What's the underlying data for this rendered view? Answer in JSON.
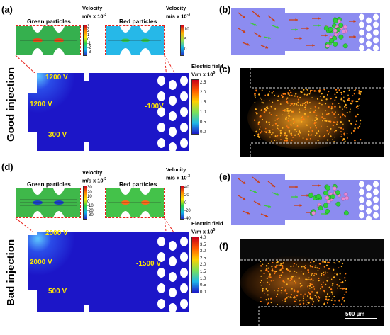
{
  "good": {
    "panel_a": "(a)",
    "panel_b": "(b)",
    "panel_c": "(c)",
    "side_label": "Good injection",
    "green_title": "Green particles",
    "red_title": "Red particles",
    "vel1_label": [
      "Velocity",
      "m/s x 10",
      "-3"
    ],
    "vel2_label": [
      "Velocity",
      "m/s x 10",
      "-3"
    ],
    "vel1_ticks": [
      "3",
      "2",
      "1",
      "0",
      "-1",
      "-2",
      "-3"
    ],
    "vel2_ticks": [
      "10",
      "5",
      "0"
    ],
    "field_label": [
      "Electric field",
      "V/m x 10",
      "5"
    ],
    "field_ticks": [
      "2.5",
      "2.0",
      "1.5",
      "1.0",
      "0.5",
      "0.0"
    ],
    "v_top": "1200 V",
    "v_left": "1200 V",
    "v_bottom": "300 V",
    "v_right": "-100V"
  },
  "bad": {
    "panel_d": "(d)",
    "panel_e": "(e)",
    "panel_f": "(f)",
    "side_label": "Bad injection",
    "green_title": "Green particles",
    "red_title": "Red particles",
    "vel1_label": [
      "Velocity",
      "m/s x 10",
      "-3"
    ],
    "vel2_label": [
      "Velocity",
      "m/s x 10",
      "-3"
    ],
    "vel1_ticks": [
      "30",
      "20",
      "10",
      "0",
      "-10",
      "-20",
      "-30"
    ],
    "vel2_ticks": [
      "40",
      "20",
      "0",
      "-20",
      "-40"
    ],
    "field_label": [
      "Electric field",
      "V/m x 10",
      "5"
    ],
    "field_ticks": [
      "4.0",
      "3.5",
      "3.0",
      "2.5",
      "2.0",
      "1.5",
      "1.0",
      "0.5",
      "0.0"
    ],
    "v_top": "2000 V",
    "v_left": "2000 V",
    "v_bottom": "500 V",
    "v_right": "-1500 V",
    "scale_bar": "500 µm"
  },
  "colors": {
    "sim_blue": "#1c16c8",
    "voltage_text": "#ffe800",
    "dash_red": "#e8231c",
    "device_purple": "#8c8cf0",
    "green_particle": "#2fcf3a",
    "pink_particle": "#e88ad2"
  }
}
